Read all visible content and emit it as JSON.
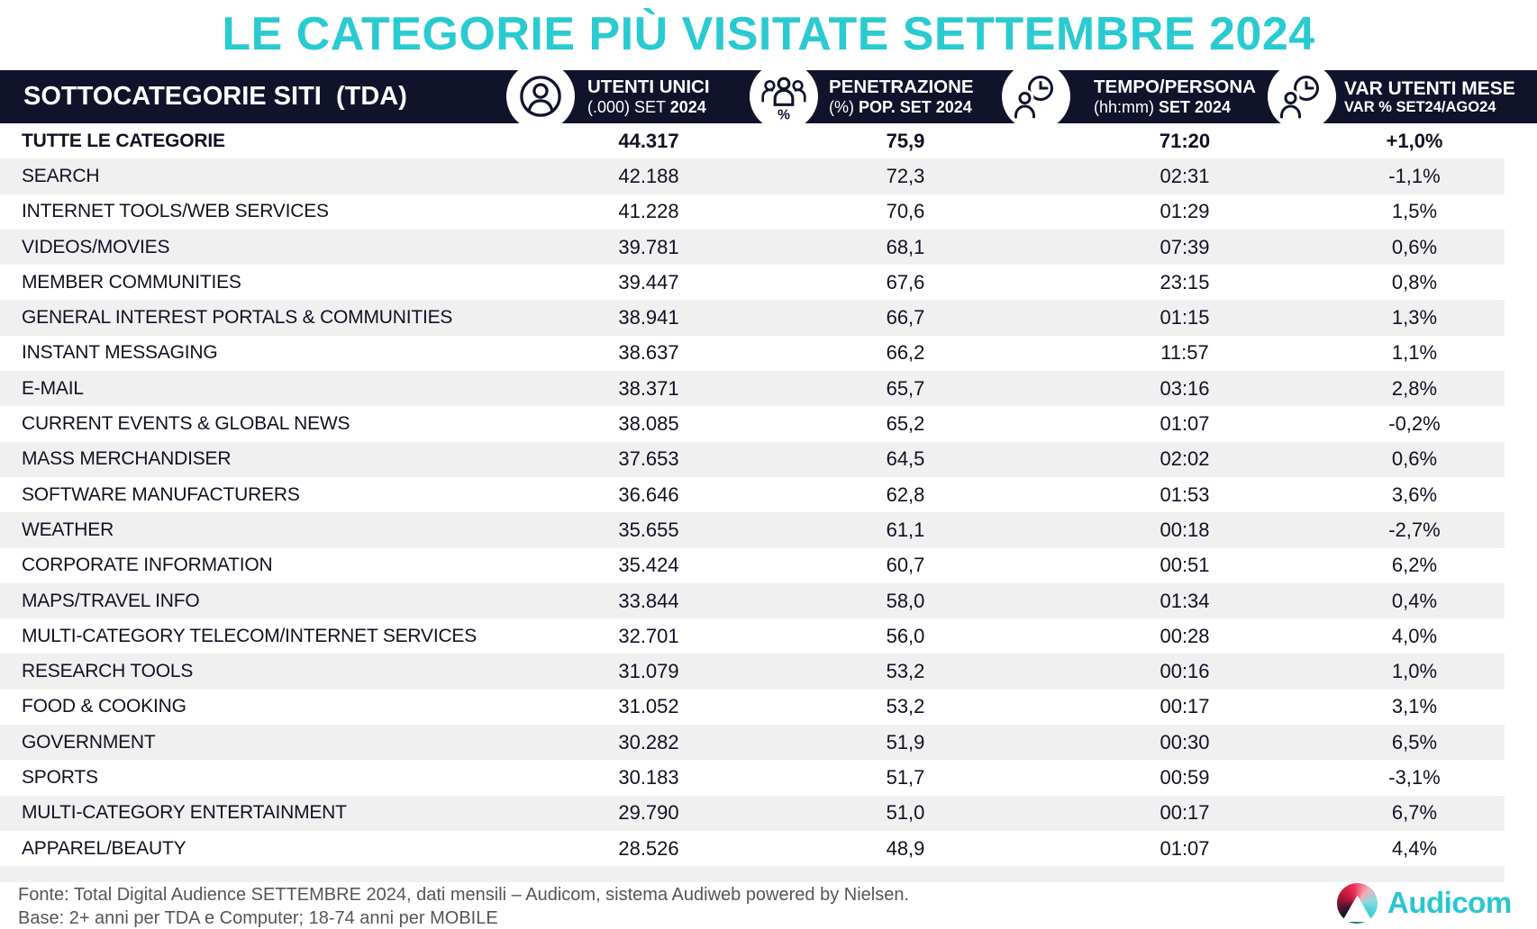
{
  "title": "LE CATEGORIE PIÙ VISITATE SETTEMBRE 2024",
  "table": {
    "row_header": "SOTTOCATEGORIE SITI  (TDA)",
    "columns": [
      {
        "icon": "user-circle-icon",
        "line1": "UTENTI UNICI",
        "line2_normal": "(.000) SET ",
        "line2_bold": "2024"
      },
      {
        "icon": "audience-percent-icon",
        "line1": "PENETRAZIONE",
        "line2_normal": "(%) ",
        "line2_bold": "POP. SET 2024"
      },
      {
        "icon": "person-clock-icon",
        "line1": "TEMPO/PERSONA",
        "line2_normal": "(hh:mm) ",
        "line2_bold": "SET 2024"
      },
      {
        "icon": "person-clock-icon",
        "line1": "VAR UTENTI MESE",
        "line2_normal": "",
        "line2_bold": "VAR % SET24/AGO24"
      }
    ],
    "rows": [
      {
        "name": "TUTTE LE CATEGORIE",
        "utenti": "44.317",
        "pen": "75,9",
        "tempo": "71:20",
        "var": "+1,0%",
        "bold": true
      },
      {
        "name": "SEARCH",
        "utenti": "42.188",
        "pen": "72,3",
        "tempo": "02:31",
        "var": "-1,1%"
      },
      {
        "name": "INTERNET TOOLS/WEB SERVICES",
        "utenti": "41.228",
        "pen": "70,6",
        "tempo": "01:29",
        "var": "1,5%"
      },
      {
        "name": "VIDEOS/MOVIES",
        "utenti": "39.781",
        "pen": "68,1",
        "tempo": "07:39",
        "var": "0,6%"
      },
      {
        "name": "MEMBER COMMUNITIES",
        "utenti": "39.447",
        "pen": "67,6",
        "tempo": "23:15",
        "var": "0,8%"
      },
      {
        "name": "GENERAL INTEREST PORTALS & COMMUNITIES",
        "utenti": "38.941",
        "pen": "66,7",
        "tempo": "01:15",
        "var": "1,3%"
      },
      {
        "name": "INSTANT MESSAGING",
        "utenti": "38.637",
        "pen": "66,2",
        "tempo": "11:57",
        "var": "1,1%"
      },
      {
        "name": "E-MAIL",
        "utenti": "38.371",
        "pen": "65,7",
        "tempo": "03:16",
        "var": "2,8%"
      },
      {
        "name": "CURRENT EVENTS & GLOBAL NEWS",
        "utenti": "38.085",
        "pen": "65,2",
        "tempo": "01:07",
        "var": "-0,2%"
      },
      {
        "name": "MASS MERCHANDISER",
        "utenti": "37.653",
        "pen": "64,5",
        "tempo": "02:02",
        "var": "0,6%"
      },
      {
        "name": "SOFTWARE MANUFACTURERS",
        "utenti": "36.646",
        "pen": "62,8",
        "tempo": "01:53",
        "var": "3,6%"
      },
      {
        "name": "WEATHER",
        "utenti": "35.655",
        "pen": "61,1",
        "tempo": "00:18",
        "var": "-2,7%"
      },
      {
        "name": "CORPORATE INFORMATION",
        "utenti": "35.424",
        "pen": "60,7",
        "tempo": "00:51",
        "var": "6,2%"
      },
      {
        "name": "MAPS/TRAVEL INFO",
        "utenti": "33.844",
        "pen": "58,0",
        "tempo": "01:34",
        "var": "0,4%"
      },
      {
        "name": "MULTI-CATEGORY TELECOM/INTERNET SERVICES",
        "utenti": "32.701",
        "pen": "56,0",
        "tempo": "00:28",
        "var": "4,0%"
      },
      {
        "name": "RESEARCH TOOLS",
        "utenti": "31.079",
        "pen": "53,2",
        "tempo": "00:16",
        "var": "1,0%"
      },
      {
        "name": "FOOD & COOKING",
        "utenti": "31.052",
        "pen": "53,2",
        "tempo": "00:17",
        "var": "3,1%"
      },
      {
        "name": "GOVERNMENT",
        "utenti": "30.282",
        "pen": "51,9",
        "tempo": "00:30",
        "var": "6,5%"
      },
      {
        "name": "SPORTS",
        "utenti": "30.183",
        "pen": "51,7",
        "tempo": "00:59",
        "var": "-3,1%"
      },
      {
        "name": "MULTI-CATEGORY ENTERTAINMENT",
        "utenti": "29.790",
        "pen": "51,0",
        "tempo": "00:17",
        "var": "6,7%"
      },
      {
        "name": "APPAREL/BEAUTY",
        "utenti": "28.526",
        "pen": "48,9",
        "tempo": "01:07",
        "var": "4,4%"
      }
    ]
  },
  "footer": {
    "line1": "Fonte: Total Digital Audience SETTEMBRE 2024, dati mensili – Audicom, sistema Audiweb powered by Nielsen.",
    "line2": "Base: 2+ anni per TDA e Computer; 18-74 anni per MOBILE",
    "logo_text": "Audicom"
  },
  "colors": {
    "accent_teal": "#29CBD1",
    "header_bg": "#11132B",
    "row_alt": "#F0F0F1",
    "footer_text": "#55565A",
    "logo_red": "#EC2C52"
  },
  "chart_data": {
    "type": "table",
    "title": "LE CATEGORIE PIÙ VISITATE SETTEMBRE 2024",
    "columns": [
      "SOTTOCATEGORIE SITI (TDA)",
      "UTENTI UNICI (.000) SET 2024",
      "PENETRAZIONE (%) POP. SET 2024",
      "TEMPO/PERSONA (hh:mm) SET 2024",
      "VAR UTENTI MESE VAR % SET24/AGO24"
    ],
    "rows": [
      [
        "TUTTE LE CATEGORIE",
        44317,
        75.9,
        "71:20",
        1.0
      ],
      [
        "SEARCH",
        42188,
        72.3,
        "02:31",
        -1.1
      ],
      [
        "INTERNET TOOLS/WEB SERVICES",
        41228,
        70.6,
        "01:29",
        1.5
      ],
      [
        "VIDEOS/MOVIES",
        39781,
        68.1,
        "07:39",
        0.6
      ],
      [
        "MEMBER COMMUNITIES",
        39447,
        67.6,
        "23:15",
        0.8
      ],
      [
        "GENERAL INTEREST PORTALS & COMMUNITIES",
        38941,
        66.7,
        "01:15",
        1.3
      ],
      [
        "INSTANT MESSAGING",
        38637,
        66.2,
        "11:57",
        1.1
      ],
      [
        "E-MAIL",
        38371,
        65.7,
        "03:16",
        2.8
      ],
      [
        "CURRENT EVENTS & GLOBAL NEWS",
        38085,
        65.2,
        "01:07",
        -0.2
      ],
      [
        "MASS MERCHANDISER",
        37653,
        64.5,
        "02:02",
        0.6
      ],
      [
        "SOFTWARE MANUFACTURERS",
        36646,
        62.8,
        "01:53",
        3.6
      ],
      [
        "WEATHER",
        35655,
        61.1,
        "00:18",
        -2.7
      ],
      [
        "CORPORATE INFORMATION",
        35424,
        60.7,
        "00:51",
        6.2
      ],
      [
        "MAPS/TRAVEL INFO",
        33844,
        58.0,
        "01:34",
        0.4
      ],
      [
        "MULTI-CATEGORY TELECOM/INTERNET SERVICES",
        32701,
        56.0,
        "00:28",
        4.0
      ],
      [
        "RESEARCH TOOLS",
        31079,
        53.2,
        "00:16",
        1.0
      ],
      [
        "FOOD & COOKING",
        31052,
        53.2,
        "00:17",
        3.1
      ],
      [
        "GOVERNMENT",
        30282,
        51.9,
        "00:30",
        6.5
      ],
      [
        "SPORTS",
        30183,
        51.7,
        "00:59",
        -3.1
      ],
      [
        "MULTI-CATEGORY ENTERTAINMENT",
        29790,
        51.0,
        "00:17",
        6.7
      ],
      [
        "APPAREL/BEAUTY",
        28526,
        48.9,
        "01:07",
        4.4
      ]
    ]
  }
}
